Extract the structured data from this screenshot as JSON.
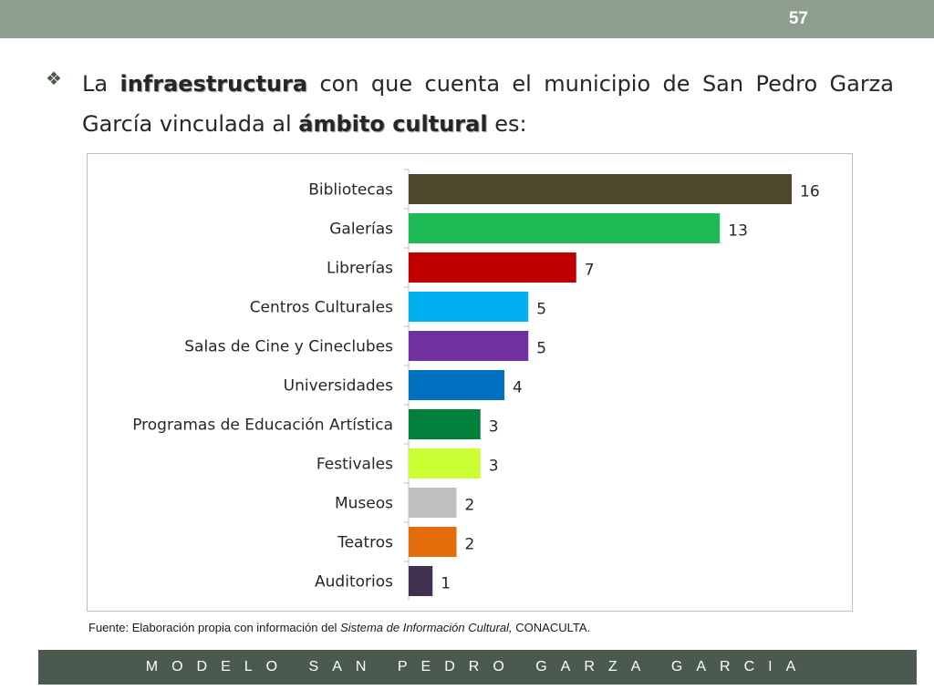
{
  "slide": {
    "page_number": "57",
    "footer": "MODELO SAN PEDRO GARZA GARCIA",
    "source_prefix": "Fuente: Elaboración propia con información del ",
    "source_italic": "Sistema de Información Cultural,",
    "source_suffix": " CONACULTA."
  },
  "bullet": {
    "icon": "diamond-bullet-icon",
    "text_1": "La ",
    "bold_1": "infraestructura",
    "text_2": " con que cuenta el municipio de San Pedro Garza García vinculada al ",
    "bold_2": "ámbito cultural",
    "text_3": " es:"
  },
  "chart_data": {
    "type": "bar",
    "orientation": "horizontal",
    "categories": [
      "Bibliotecas",
      "Galerías",
      "Librerías",
      "Centros Culturales",
      "Salas de Cine y Cineclubes",
      "Universidades",
      "Programas de Educación Artística",
      "Festivales",
      "Museos",
      "Teatros",
      "Auditorios"
    ],
    "values": [
      16,
      13,
      7,
      5,
      5,
      4,
      3,
      3,
      2,
      2,
      1
    ],
    "colors": [
      "#4e472e",
      "#1db954",
      "#c00000",
      "#00b0f0",
      "#7030a0",
      "#0070c0",
      "#00803a",
      "#ccff33",
      "#bfbfbf",
      "#e46c0a",
      "#403151"
    ],
    "data_labels": [
      "16",
      "13",
      "7",
      "5",
      "5",
      "4",
      "3",
      "3",
      "2",
      "2",
      "1"
    ],
    "title": "",
    "xlabel": "",
    "ylabel": "",
    "xlim": [
      0,
      16
    ],
    "grid": false,
    "legend": "none"
  }
}
